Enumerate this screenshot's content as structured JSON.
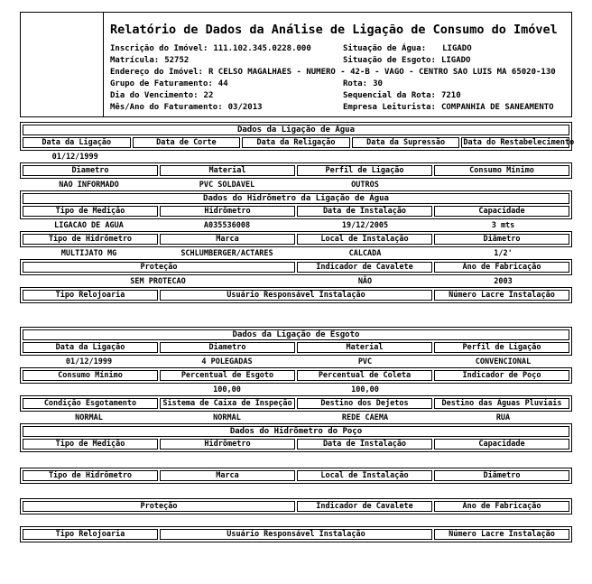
{
  "title": "Relatório de Dados da Análise de Ligação de Consumo do Imóvel",
  "colors": {
    "text": "#000000",
    "border": "#000000",
    "background": "#ffffff"
  },
  "info": {
    "inscricao": {
      "label": "Inscrição do Imóvel:",
      "value": "111.102.345.0228.000"
    },
    "situacao_agua": {
      "label": "Situação de Água:",
      "value": "LIGADO"
    },
    "matricula": {
      "label": "Matrícula:",
      "value": "52752"
    },
    "situacao_esgoto": {
      "label": "Situação de Esgoto:",
      "value": "LIGADO"
    },
    "endereco": {
      "label": "Endereço do Imóvel:",
      "value": "R CELSO MAGALHAES - NUMERO - 42-B - VAGO - CENTRO SAO LUIS MA 65020-130"
    },
    "grupo_faturamento": {
      "label": "Grupo de Faturamento:",
      "value": "44"
    },
    "rota": {
      "label": "Rota:",
      "value": "30"
    },
    "dia_vencimento": {
      "label": "Dia do Vencimento:",
      "value": "22"
    },
    "sequencial_rota": {
      "label": "Sequencial da Rota:",
      "value": "7210"
    },
    "mes_ano_faturamento": {
      "label": "Mês/Ano do Faturamento:",
      "value": "03/2013"
    },
    "empresa_leiturista": {
      "label": "Empresa Leiturista:",
      "value": "COMPANHIA DE SANEAMENTO"
    }
  },
  "ligacao_agua": {
    "title": "Dados da Ligação de Água",
    "datas": {
      "headers": [
        "Data da Ligação",
        "Data de Corte",
        "Data da Religação",
        "Data da Supressão",
        "Data do Restabelecimento"
      ],
      "values": [
        "01/12/1999",
        "",
        "",
        "",
        ""
      ]
    },
    "caracteristicas": {
      "headers": [
        "Diametro",
        "Material",
        "Perfil de Ligação",
        "Consumo Mínimo"
      ],
      "values": [
        "NAO INFORMADO",
        "PVC SOLDAVEL",
        "OUTROS",
        ""
      ]
    }
  },
  "hidrometro_agua": {
    "title": "Dados do Hidrômetro da Ligação de Água",
    "medicao": {
      "headers": [
        "Tipo de Medição",
        "Hidrômetro",
        "Data de Instalação",
        "Capacidade"
      ],
      "values": [
        "LIGACAO DE AGUA",
        "A035536008",
        "19/12/2005",
        "3 mts"
      ]
    },
    "equipamento": {
      "headers": [
        "Tipo de Hidrômetro",
        "Marca",
        "Local de Instalação",
        "Diâmetro"
      ],
      "values": [
        "MULTIJATO MG",
        "SCHLUMBERGER/ACTARES",
        "CALCADA",
        "1/2'"
      ]
    },
    "protecao": {
      "headers": [
        "Proteção",
        "Indicador de Cavalete",
        "Ano de Fabricação"
      ],
      "values": [
        "SEM PROTECAO",
        "NÃO",
        "2003"
      ]
    },
    "relojoaria": {
      "headers": [
        "Tipo Relojoaria",
        "Usuário Responsável Instalação",
        "Número Lacre Instalação"
      ],
      "values": [
        "",
        "",
        ""
      ]
    }
  },
  "ligacao_esgoto": {
    "title": "Dados da Ligação de Esgoto",
    "dados": {
      "headers": [
        "Data da Ligação",
        "Diametro",
        "Material",
        "Perfil de Ligação"
      ],
      "values": [
        "01/12/1999",
        "4 POLEGADAS",
        "PVC",
        "CONVENCIONAL"
      ]
    },
    "percentuais": {
      "headers": [
        "Consumo Mínimo",
        "Percentual de Esgoto",
        "Percentual de Coleta",
        "Indicador de Poço"
      ],
      "values": [
        "",
        "100,00",
        "100,00",
        ""
      ]
    },
    "destino": {
      "headers": [
        "Condição Esgotamento",
        "Sistema de Caixa de Inspeção",
        "Destino dos Dejetos",
        "Destino das Águas Pluviais"
      ],
      "values": [
        "NORMAL",
        "NORMAL",
        "REDE CAEMA",
        "RUA"
      ]
    }
  },
  "hidrometro_poco": {
    "title": "Dados do Hidrômetro do Poço",
    "medicao": {
      "headers": [
        "Tipo de Medição",
        "Hidrômetro",
        "Data de Instalação",
        "Capacidade"
      ],
      "values": [
        "",
        "",
        "",
        ""
      ]
    },
    "equipamento": {
      "headers": [
        "Tipo de Hidrômetro",
        "Marca",
        "Local de Instalação",
        "Diâmetro"
      ],
      "values": [
        "",
        "",
        "",
        ""
      ]
    },
    "protecao": {
      "headers": [
        "Proteção",
        "Indicador de Cavalete",
        "Ano de Fabricação"
      ],
      "values": [
        "",
        "",
        ""
      ]
    },
    "relojoaria": {
      "headers": [
        "Tipo Relojoaria",
        "Usuário Responsável Instalação",
        "Número Lacre Instalação"
      ],
      "values": [
        "",
        "",
        ""
      ]
    }
  }
}
